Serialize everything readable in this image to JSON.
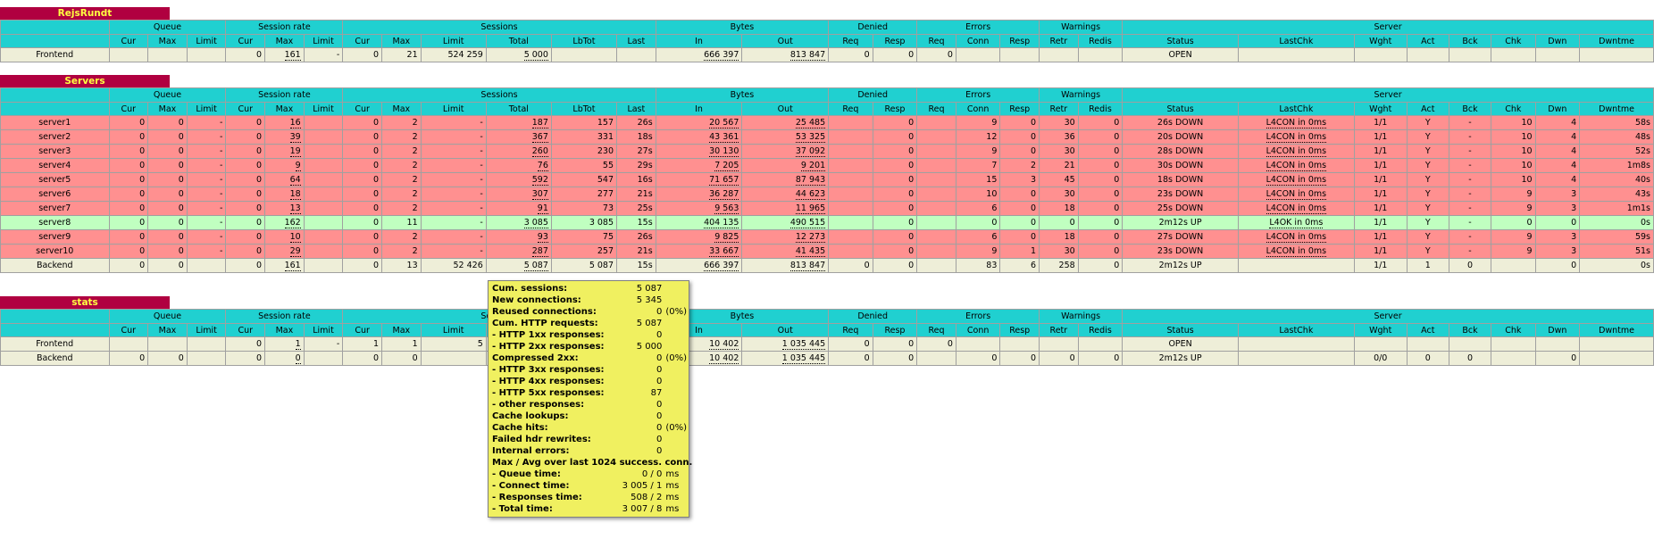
{
  "colors": {
    "title_bg": "#b00040",
    "title_fg": "#ffff40",
    "header_bg": "#20d0d0",
    "neutral_row": "#eeeed8",
    "down_row": "#ff9090",
    "up_row": "#c0ffc0",
    "popup_bg": "#f0f060"
  },
  "headers": {
    "groups": [
      "Queue",
      "Session rate",
      "Sessions",
      "Bytes",
      "Denied",
      "Errors",
      "Warnings",
      "Server"
    ],
    "sub": [
      "Cur",
      "Max",
      "Limit",
      "Cur",
      "Max",
      "Limit",
      "Cur",
      "Max",
      "Limit",
      "Total",
      "LbTot",
      "Last",
      "In",
      "Out",
      "Req",
      "Resp",
      "Req",
      "Conn",
      "Resp",
      "Retr",
      "Redis",
      "Status",
      "LastChk",
      "Wght",
      "Act",
      "Bck",
      "Chk",
      "Dwn",
      "Dwntme"
    ]
  },
  "proxies": [
    {
      "name": "RejsRundt",
      "rows": [
        {
          "name": "Frontend",
          "type": "fe",
          "cells": [
            "",
            "",
            "",
            "0",
            "161",
            "-",
            "0",
            "21",
            "524 259",
            "5 000",
            "",
            "",
            "666 397",
            "813 847",
            "0",
            "0",
            "0",
            "",
            "",
            "",
            "",
            "OPEN",
            "",
            "",
            "",
            "",
            "",
            "",
            ""
          ]
        }
      ]
    },
    {
      "name": "Servers",
      "rows": [
        {
          "name": "server1",
          "type": "down",
          "cells": [
            "0",
            "0",
            "-",
            "0",
            "16",
            "",
            "0",
            "2",
            "-",
            "187",
            "157",
            "26s",
            "20 567",
            "25 485",
            "",
            "0",
            "",
            "9",
            "0",
            "30",
            "0",
            "26s DOWN",
            "L4CON in 0ms",
            "1/1",
            "Y",
            "-",
            "10",
            "4",
            "58s"
          ]
        },
        {
          "name": "server2",
          "type": "down",
          "cells": [
            "0",
            "0",
            "-",
            "0",
            "39",
            "",
            "0",
            "2",
            "-",
            "367",
            "331",
            "18s",
            "43 361",
            "53 325",
            "",
            "0",
            "",
            "12",
            "0",
            "36",
            "0",
            "20s DOWN",
            "L4CON in 0ms",
            "1/1",
            "Y",
            "-",
            "10",
            "4",
            "48s"
          ]
        },
        {
          "name": "server3",
          "type": "down",
          "cells": [
            "0",
            "0",
            "-",
            "0",
            "19",
            "",
            "0",
            "2",
            "-",
            "260",
            "230",
            "27s",
            "30 130",
            "37 092",
            "",
            "0",
            "",
            "9",
            "0",
            "30",
            "0",
            "28s DOWN",
            "L4CON in 0ms",
            "1/1",
            "Y",
            "-",
            "10",
            "4",
            "52s"
          ]
        },
        {
          "name": "server4",
          "type": "down",
          "cells": [
            "0",
            "0",
            "-",
            "0",
            "9",
            "",
            "0",
            "2",
            "-",
            "76",
            "55",
            "29s",
            "7 205",
            "9 201",
            "",
            "0",
            "",
            "7",
            "2",
            "21",
            "0",
            "30s DOWN",
            "L4CON in 0ms",
            "1/1",
            "Y",
            "-",
            "10",
            "4",
            "1m8s"
          ]
        },
        {
          "name": "server5",
          "type": "down",
          "cells": [
            "0",
            "0",
            "-",
            "0",
            "64",
            "",
            "0",
            "2",
            "-",
            "592",
            "547",
            "16s",
            "71 657",
            "87 943",
            "",
            "0",
            "",
            "15",
            "3",
            "45",
            "0",
            "18s DOWN",
            "L4CON in 0ms",
            "1/1",
            "Y",
            "-",
            "10",
            "4",
            "40s"
          ]
        },
        {
          "name": "server6",
          "type": "down",
          "cells": [
            "0",
            "0",
            "-",
            "0",
            "18",
            "",
            "0",
            "2",
            "-",
            "307",
            "277",
            "21s",
            "36 287",
            "44 623",
            "",
            "0",
            "",
            "10",
            "0",
            "30",
            "0",
            "23s DOWN",
            "L4CON in 0ms",
            "1/1",
            "Y",
            "-",
            "9",
            "3",
            "43s"
          ]
        },
        {
          "name": "server7",
          "type": "down",
          "cells": [
            "0",
            "0",
            "-",
            "0",
            "13",
            "",
            "0",
            "2",
            "-",
            "91",
            "73",
            "25s",
            "9 563",
            "11 965",
            "",
            "0",
            "",
            "6",
            "0",
            "18",
            "0",
            "25s DOWN",
            "L4CON in 0ms",
            "1/1",
            "Y",
            "-",
            "9",
            "3",
            "1m1s"
          ]
        },
        {
          "name": "server8",
          "type": "up",
          "cells": [
            "0",
            "0",
            "-",
            "0",
            "162",
            "",
            "0",
            "11",
            "-",
            "3 085",
            "3 085",
            "15s",
            "404 135",
            "490 515",
            "",
            "0",
            "",
            "0",
            "0",
            "0",
            "0",
            "2m12s UP",
            "L4OK in 0ms",
            "1/1",
            "Y",
            "-",
            "0",
            "0",
            "0s"
          ]
        },
        {
          "name": "server9",
          "type": "down",
          "cells": [
            "0",
            "0",
            "-",
            "0",
            "10",
            "",
            "0",
            "2",
            "-",
            "93",
            "75",
            "26s",
            "9 825",
            "12 273",
            "",
            "0",
            "",
            "6",
            "0",
            "18",
            "0",
            "27s DOWN",
            "L4CON in 0ms",
            "1/1",
            "Y",
            "-",
            "9",
            "3",
            "59s"
          ]
        },
        {
          "name": "server10",
          "type": "down",
          "cells": [
            "0",
            "0",
            "-",
            "0",
            "29",
            "",
            "0",
            "2",
            "-",
            "287",
            "257",
            "21s",
            "33 667",
            "41 435",
            "",
            "0",
            "",
            "9",
            "1",
            "30",
            "0",
            "23s DOWN",
            "L4CON in 0ms",
            "1/1",
            "Y",
            "-",
            "9",
            "3",
            "51s"
          ]
        },
        {
          "name": "Backend",
          "type": "be",
          "cells": [
            "0",
            "0",
            "",
            "0",
            "161",
            "",
            "0",
            "13",
            "52 426",
            "5 087",
            "5 087",
            "15s",
            "666 397",
            "813 847",
            "0",
            "0",
            "",
            "83",
            "6",
            "258",
            "0",
            "2m12s UP",
            "",
            "1/1",
            "1",
            "0",
            "",
            "0",
            "0s"
          ]
        }
      ]
    },
    {
      "name": "stats",
      "rows": [
        {
          "name": "Frontend",
          "type": "fe",
          "cells": [
            "",
            "",
            "",
            "0",
            "1",
            "-",
            "1",
            "1",
            "5",
            "",
            "",
            "",
            "10 402",
            "1 035 445",
            "0",
            "0",
            "0",
            "",
            "",
            "",
            "",
            "OPEN",
            "",
            "",
            "",
            "",
            "",
            "",
            ""
          ]
        },
        {
          "name": "Backend",
          "type": "be",
          "cells": [
            "0",
            "0",
            "",
            "0",
            "0",
            "",
            "0",
            "0",
            "",
            "",
            "",
            "",
            "10 402",
            "1 035 445",
            "0",
            "0",
            "",
            "0",
            "0",
            "0",
            "0",
            "2m12s UP",
            "",
            "0/0",
            "0",
            "0",
            "",
            "0",
            ""
          ]
        }
      ]
    }
  ],
  "tooltip": {
    "rows": [
      {
        "k": "Cum. sessions:",
        "v": "5 087",
        "u": ""
      },
      {
        "k": "New connections:",
        "v": "5 345",
        "u": ""
      },
      {
        "k": "Reused connections:",
        "v": "0",
        "u": "(0%)"
      },
      {
        "k": "Cum. HTTP requests:",
        "v": "5 087",
        "u": ""
      },
      {
        "k": "- HTTP 1xx responses:",
        "v": "0",
        "u": ""
      },
      {
        "k": "- HTTP 2xx responses:",
        "v": "5 000",
        "u": ""
      },
      {
        "k": "  Compressed 2xx:",
        "v": "0",
        "u": "(0%)"
      },
      {
        "k": "- HTTP 3xx responses:",
        "v": "0",
        "u": ""
      },
      {
        "k": "- HTTP 4xx responses:",
        "v": "0",
        "u": ""
      },
      {
        "k": "- HTTP 5xx responses:",
        "v": "87",
        "u": ""
      },
      {
        "k": "- other responses:",
        "v": "0",
        "u": ""
      },
      {
        "k": "Cache lookups:",
        "v": "0",
        "u": ""
      },
      {
        "k": "Cache hits:",
        "v": "0",
        "u": "(0%)"
      },
      {
        "k": "Failed hdr rewrites:",
        "v": "0",
        "u": ""
      },
      {
        "k": "Internal errors:",
        "v": "0",
        "u": ""
      }
    ],
    "heading": "Max / Avg over last 1024 success. conn.",
    "timing": [
      {
        "k": "- Queue time:",
        "v": "0 / 0",
        "u": "ms"
      },
      {
        "k": "- Connect time:",
        "v": "3 005 / 1",
        "u": "ms"
      },
      {
        "k": "- Responses time:",
        "v": "508 / 2",
        "u": "ms"
      },
      {
        "k": "- Total time:",
        "v": "3 007 / 8",
        "u": "ms"
      }
    ]
  }
}
